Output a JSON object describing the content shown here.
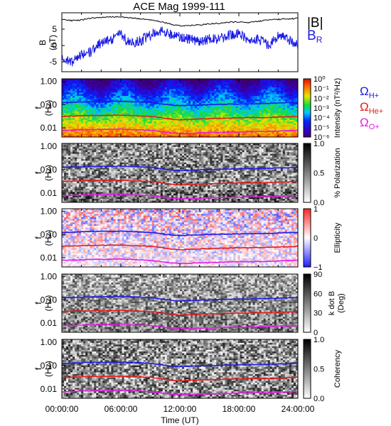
{
  "title": "ACE Mag 1999-111",
  "xlabel": "Time (UT)",
  "x_ticks": [
    "00:00:00",
    "06:00:00",
    "12:00:00",
    "18:00:00",
    "24:00:00"
  ],
  "freq_ticks": [
    "1.00",
    "0.10",
    "0.01"
  ],
  "panels": [
    {
      "id": "field",
      "type": "line",
      "ylabel_top": "B",
      "ylabel_bottom": "(nT)",
      "y_ticks": [
        "5",
        "0",
        "-5"
      ],
      "legend": [
        {
          "label": "|B|",
          "color": "#000000"
        },
        {
          "label": "B",
          "sub": "R",
          "color": "#1a1ae6"
        }
      ]
    },
    {
      "id": "intensity",
      "type": "heatmap",
      "ylabel_top": "f",
      "ylabel_bottom": "(Hz)",
      "cbar_label": "Intensity (nT²/Hz)",
      "cbar_ticks": [
        "10⁰",
        "10⁻¹",
        "10⁻²",
        "10⁻³",
        "10⁻⁴",
        "10⁻⁵",
        "10⁻⁶"
      ],
      "gyro_legend": [
        {
          "label": "Ω",
          "sub": "H+",
          "color": "#1a1ae6"
        },
        {
          "label": "Ω",
          "sub": "He+",
          "color": "#e61a1a"
        },
        {
          "label": "Ω",
          "sub": "O+",
          "color": "#e619e6"
        }
      ]
    },
    {
      "id": "polarization",
      "type": "heatmap",
      "ylabel_top": "f",
      "ylabel_bottom": "(Hz)",
      "cbar_label": "% Polarization",
      "cbar_ticks": [
        "1.0",
        "0.5",
        "0.0"
      ]
    },
    {
      "id": "ellipticity",
      "type": "heatmap",
      "ylabel_top": "f",
      "ylabel_bottom": "(Hz)",
      "cbar_label": "Ellipticity",
      "cbar_ticks": [
        "1",
        "0",
        "−1"
      ]
    },
    {
      "id": "kdotb",
      "type": "heatmap",
      "ylabel_top": "f",
      "ylabel_bottom": "(Hz)",
      "cbar_label": "k dot B",
      "cbar_label2": "(Deg)",
      "cbar_ticks": [
        "90",
        "60",
        "30",
        "0"
      ]
    },
    {
      "id": "coherency",
      "type": "heatmap",
      "ylabel_top": "f",
      "ylabel_bottom": "(Hz)",
      "cbar_label": "Coherency",
      "cbar_ticks": [
        "1.0",
        "0.5",
        "0.0"
      ]
    }
  ],
  "chart_data": {
    "type": "line",
    "title": "ACE Mag 1999-111",
    "xlabel": "Time (UT)",
    "x_unit": "hours",
    "xlim": [
      0,
      24
    ],
    "field_panel": {
      "ylim": [
        -8,
        10
      ],
      "series": [
        {
          "name": "|B|",
          "color": "#000000",
          "x": [
            0,
            1,
            2,
            3,
            4,
            5,
            6,
            7,
            8,
            9,
            10,
            11,
            12,
            13,
            14,
            15,
            16,
            17,
            18,
            19,
            20,
            21,
            22,
            23,
            24
          ],
          "values": [
            8.0,
            7.6,
            7.8,
            8.4,
            8.6,
            8.8,
            8.7,
            8.4,
            8.2,
            7.9,
            7.3,
            6.6,
            6.0,
            6.1,
            6.3,
            6.6,
            6.8,
            7.1,
            7.2,
            7.0,
            7.4,
            7.8,
            8.0,
            8.1,
            8.3
          ]
        },
        {
          "name": "B_R",
          "color": "#1a1ae6",
          "x": [
            0,
            1,
            2,
            3,
            4,
            5,
            6,
            7,
            8,
            9,
            10,
            11,
            12,
            13,
            14,
            15,
            16,
            17,
            18,
            19,
            20,
            21,
            22,
            23,
            24
          ],
          "values": [
            -4.0,
            -5.0,
            -3.0,
            -2.0,
            1.0,
            2.0,
            3.5,
            0.5,
            1.5,
            3.0,
            4.5,
            3.5,
            2.5,
            2.0,
            1.0,
            2.0,
            2.0,
            3.0,
            4.0,
            1.0,
            2.0,
            0.0,
            3.0,
            2.0,
            0.0
          ]
        }
      ]
    },
    "freq_panels": {
      "y_scale": "log",
      "ylim": [
        0.004,
        1.3
      ],
      "gyrofrequency_lines": [
        {
          "name": "Ω H+",
          "color": "#1a1ae6",
          "x": [
            0,
            3,
            6,
            9,
            10,
            11,
            12,
            15,
            18,
            21,
            24
          ],
          "values": [
            0.123,
            0.135,
            0.14,
            0.125,
            0.11,
            0.097,
            0.09,
            0.1,
            0.107,
            0.113,
            0.125
          ]
        },
        {
          "name": "Ω He+",
          "color": "#e61a1a",
          "x": [
            0,
            3,
            6,
            9,
            10,
            11,
            12,
            15,
            18,
            21,
            24
          ],
          "values": [
            0.031,
            0.034,
            0.035,
            0.031,
            0.028,
            0.024,
            0.022,
            0.025,
            0.027,
            0.028,
            0.031
          ]
        },
        {
          "name": "Ω O+",
          "color": "#e619e6",
          "x": [
            0,
            3,
            6,
            9,
            10,
            11,
            12,
            15,
            18,
            21,
            24
          ],
          "values": [
            0.0077,
            0.0084,
            0.0088,
            0.0078,
            0.0069,
            0.0061,
            0.0056,
            0.0062,
            0.0067,
            0.007,
            0.0078
          ]
        }
      ]
    }
  }
}
